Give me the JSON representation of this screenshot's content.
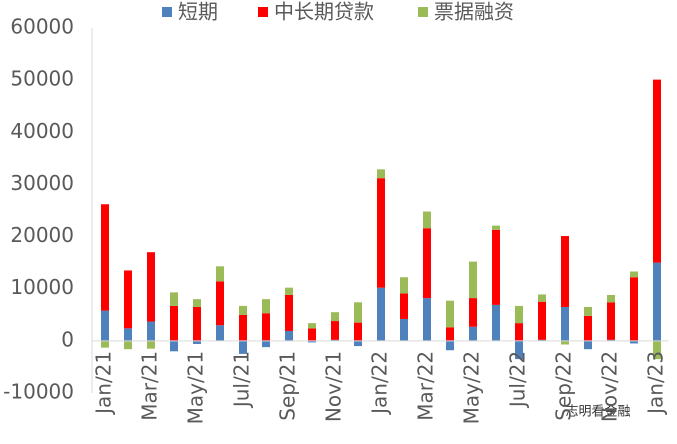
{
  "chart_data": {
    "type": "stacked_bar",
    "categories": [
      "Jan/21",
      null,
      "Mar/21",
      null,
      "May/21",
      null,
      "Jul/21",
      null,
      "Sep/21",
      null,
      "Nov/21",
      null,
      "Jan/22",
      null,
      "Mar/22",
      null,
      "May/22",
      null,
      "Jul/22",
      null,
      "Sep/22",
      null,
      "Nov/22",
      null,
      "Jan/23"
    ],
    "series": [
      {
        "name": "短期",
        "color": "#4f81bd",
        "values": [
          5800,
          2400,
          3700,
          -2000,
          -600,
          3000,
          -2500,
          -1200,
          1900,
          -300,
          200,
          -1000,
          10200,
          4200,
          8200,
          -1800,
          2700,
          6900,
          -3500,
          200,
          6500,
          -1600,
          200,
          -500,
          15000
        ]
      },
      {
        "name": "中长期贷款",
        "color": "#ff0000",
        "values": [
          20400,
          11100,
          13300,
          6700,
          6500,
          8400,
          5000,
          5300,
          6900,
          2400,
          3600,
          3500,
          21000,
          4900,
          13400,
          2600,
          5500,
          14400,
          3400,
          7300,
          13600,
          4800,
          7200,
          12200,
          35100
        ]
      },
      {
        "name": "票据融资",
        "color": "#9bbb59",
        "values": [
          -1300,
          -1600,
          -1500,
          2600,
          1500,
          2900,
          1700,
          2700,
          1400,
          1000,
          1700,
          3900,
          1700,
          3100,
          3200,
          5100,
          7000,
          800,
          3300,
          1400,
          -700,
          1700,
          1400,
          1100,
          -3500
        ]
      }
    ],
    "ylim": [
      -10000,
      60000
    ],
    "yticks": [
      -10000,
      0,
      10000,
      20000,
      30000,
      40000,
      50000,
      60000
    ],
    "grid": false,
    "legend": "top",
    "watermark": "志明看金融"
  }
}
